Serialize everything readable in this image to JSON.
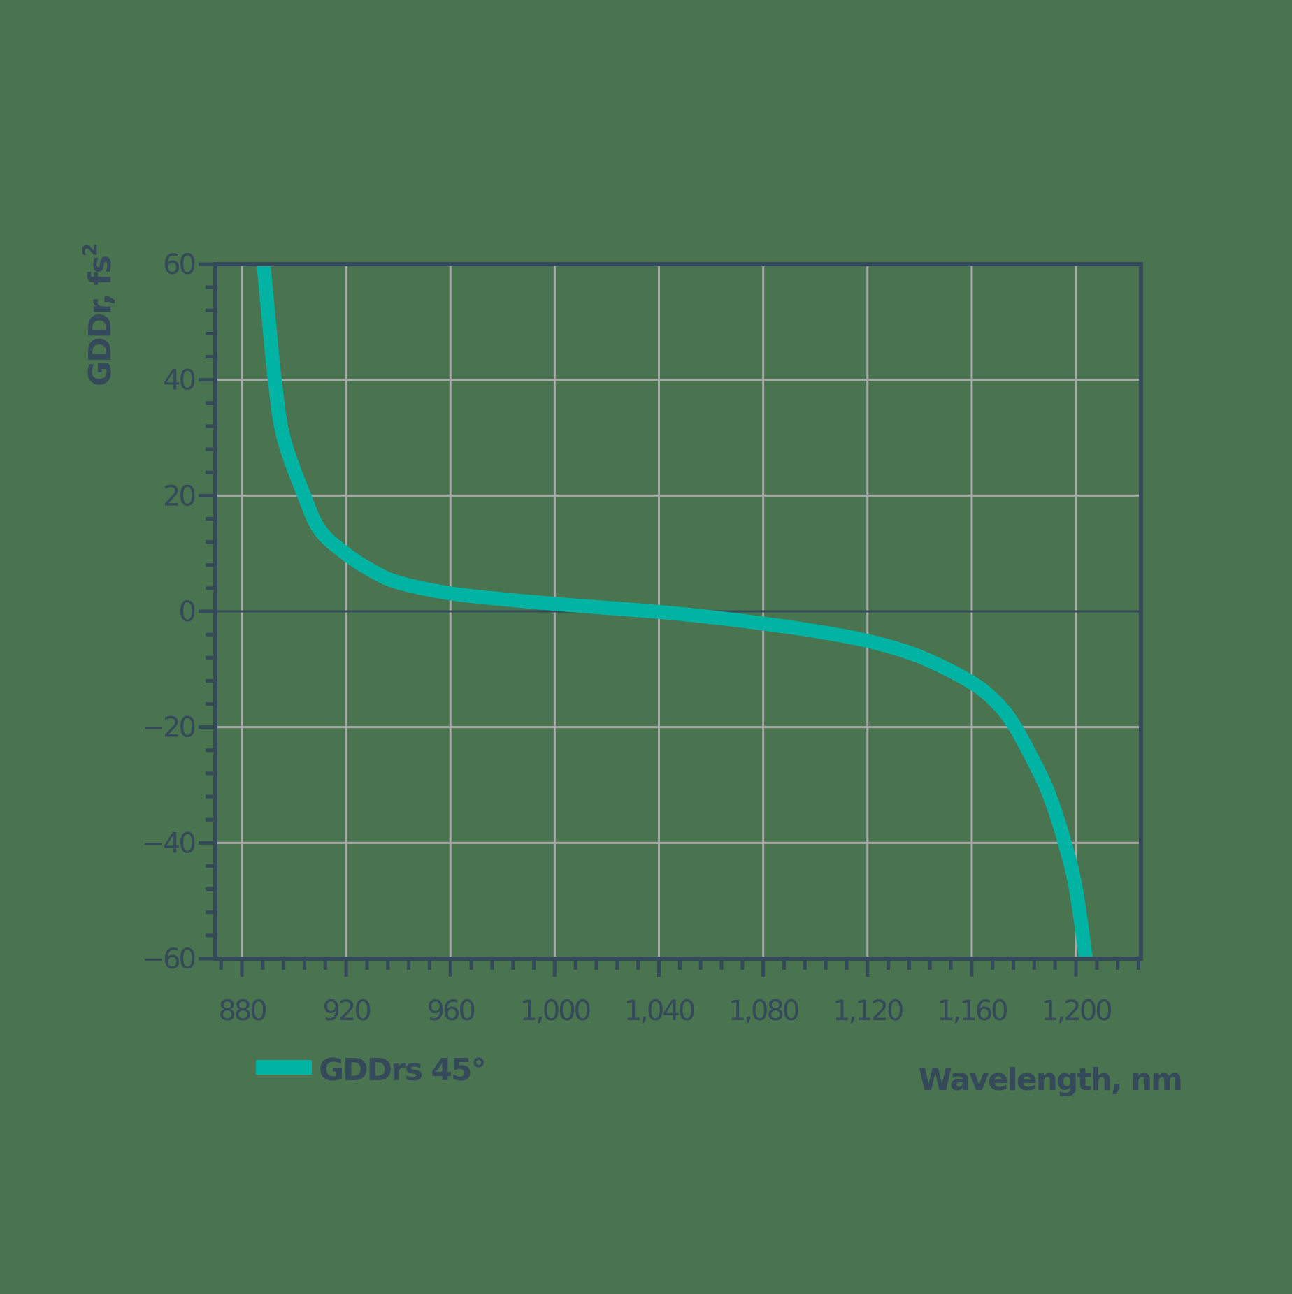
{
  "chart_data": {
    "type": "line",
    "title": "",
    "xlabel": "Wavelength, nm",
    "ylabel": "GDDr, fs",
    "ylabel_superscript": "2",
    "xlim": [
      870,
      1225
    ],
    "ylim": [
      -60,
      60
    ],
    "grid": true,
    "legend_position": "bottom-left",
    "x_ticks": [
      880,
      920,
      960,
      1000,
      1040,
      1080,
      1120,
      1160,
      1200
    ],
    "x_tick_labels": [
      "880",
      "920",
      "960",
      "1,000",
      "1,040",
      "1,080",
      "1,120",
      "1,160",
      "1,200"
    ],
    "x_minor_step": 8,
    "y_ticks": [
      60,
      40,
      20,
      0,
      -20,
      -40,
      -60
    ],
    "y_tick_labels": [
      "60",
      "40",
      "20",
      "0",
      "−20",
      "−40",
      "−60"
    ],
    "y_minor_step": 4,
    "series": [
      {
        "name": "GDDrs 45°",
        "color": "#00b3a3",
        "x": [
          888.3,
          890,
          892.6,
          896,
          903.9,
          910,
          920,
          930,
          940,
          960,
          980,
          1000,
          1020,
          1040,
          1060,
          1080,
          1100,
          1120,
          1140,
          1160,
          1170,
          1176.7,
          1185,
          1190,
          1195.7,
          1200,
          1203.8
        ],
        "y": [
          60,
          52,
          40,
          30,
          20,
          14,
          9.9,
          7,
          5,
          3.1,
          2.1,
          1.3,
          0.6,
          -0.1,
          -1.0,
          -2.1,
          -3.4,
          -5.1,
          -7.8,
          -12.3,
          -16,
          -20,
          -27,
          -32,
          -40,
          -48,
          -60
        ]
      }
    ]
  },
  "colors": {
    "background": "#4a7350",
    "axis": "#34495a",
    "grid": "#a9a9a9",
    "curve": "#00b3a3"
  },
  "legend": {
    "label": "GDDrs 45°"
  },
  "axes": {
    "x_title": "Wavelength, nm",
    "y_title": "GDDr, fs²"
  }
}
